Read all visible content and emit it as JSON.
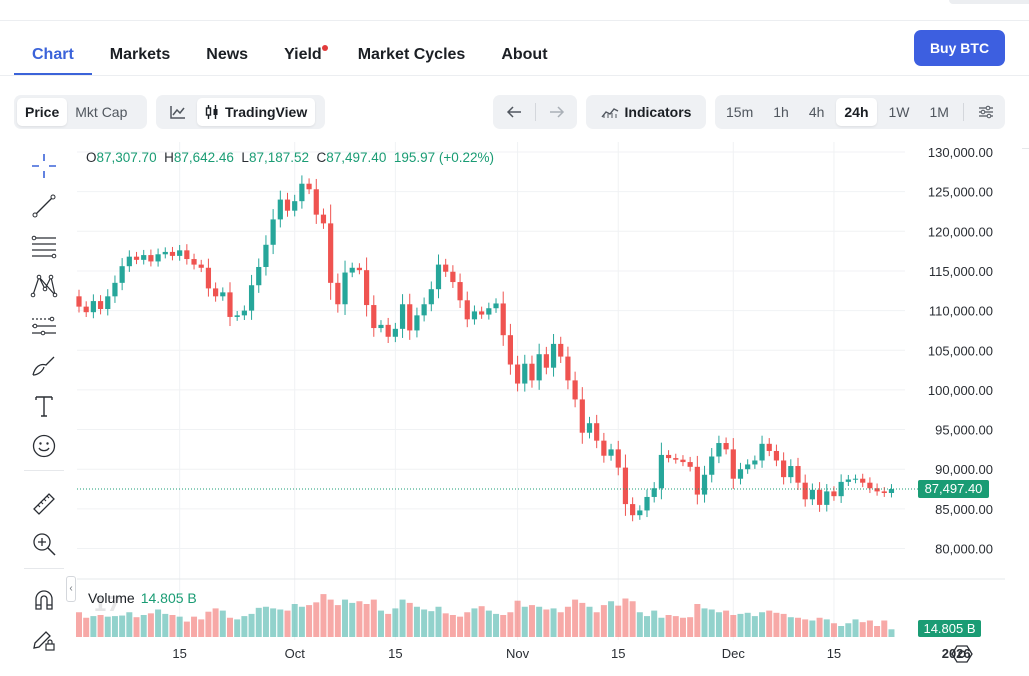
{
  "nav": {
    "tabs": [
      {
        "label": "Chart",
        "active": true
      },
      {
        "label": "Markets"
      },
      {
        "label": "News"
      },
      {
        "label": "Yield",
        "badge": true
      },
      {
        "label": "Market Cycles"
      },
      {
        "label": "About"
      }
    ],
    "buy_label": "Buy BTC"
  },
  "toolbar": {
    "price_label": "Price",
    "mktcap_label": "Mkt Cap",
    "tradingview_label": "TradingView",
    "indicators_label": "Indicators",
    "intervals": [
      "15m",
      "1h",
      "4h",
      "24h",
      "1W",
      "1M"
    ],
    "active_interval": "24h"
  },
  "ohlc": {
    "o_key": "O",
    "o": "87,307.70",
    "h_key": "H",
    "h": "87,642.46",
    "l_key": "L",
    "l": "87,187.52",
    "c_key": "C",
    "c": "87,497.40",
    "change": "195.97 (+0.22%)"
  },
  "volume_legend": {
    "label": "Volume",
    "value": "14.805 B"
  },
  "price_tag": "87,497.40",
  "volume_tag": "14.805 B",
  "colors": {
    "up": "#26a69a",
    "down": "#ef5350",
    "accent": "#3d5fe0",
    "price_tag": "#1a9c74"
  },
  "chart_data": {
    "type": "candlestick",
    "y_axis_ticks": [
      "130,000.00",
      "125,000.00",
      "120,000.00",
      "115,000.00",
      "110,000.00",
      "105,000.00",
      "100,000.00",
      "95,000.00",
      "90,000.00",
      "85,000.00",
      "80,000.00"
    ],
    "ylim": [
      77000,
      131000
    ],
    "x_axis_ticks": [
      {
        "label": "15",
        "day": 14
      },
      {
        "label": "Oct",
        "day": 30
      },
      {
        "label": "15",
        "day": 44
      },
      {
        "label": "Nov",
        "day": 61
      },
      {
        "label": "15",
        "day": 75
      },
      {
        "label": "Dec",
        "day": 91
      },
      {
        "label": "15",
        "day": 105
      },
      {
        "label": "2026",
        "day": 122
      }
    ],
    "grid": true,
    "last_price": 87497.4,
    "closes": [
      110500,
      109800,
      111200,
      110200,
      111800,
      113500,
      115600,
      116800,
      116400,
      117000,
      116200,
      117100,
      117400,
      116900,
      117600,
      116500,
      115800,
      115400,
      112800,
      111800,
      112300,
      109200,
      109400,
      110000,
      113200,
      115500,
      118300,
      121500,
      124000,
      122600,
      123800,
      126000,
      125300,
      122100,
      121000,
      113500,
      110800,
      114800,
      115400,
      115100,
      110700,
      107800,
      108200,
      106700,
      107700,
      110800,
      107500,
      109400,
      110800,
      112700,
      115800,
      114900,
      113600,
      111300,
      108900,
      109900,
      109500,
      110300,
      110900,
      106900,
      103200,
      100800,
      103300,
      101200,
      104500,
      102800,
      105800,
      104200,
      101200,
      98800,
      94600,
      95800,
      93600,
      91700,
      92500,
      90200,
      85600,
      84200,
      84800,
      86500,
      87600,
      91800,
      91400,
      91200,
      90900,
      90300,
      86800,
      89300,
      91600,
      93300,
      92500,
      88800,
      90000,
      90600,
      91100,
      93200,
      92300,
      91100,
      89000,
      90400,
      88300,
      86200,
      87400,
      85500,
      87200,
      86600,
      88400,
      88700,
      88800,
      88300,
      87600,
      87200,
      87000,
      87497
    ],
    "volumes": [
      0.45,
      0.35,
      0.38,
      0.4,
      0.37,
      0.38,
      0.39,
      0.45,
      0.36,
      0.4,
      0.43,
      0.5,
      0.42,
      0.4,
      0.37,
      0.28,
      0.37,
      0.32,
      0.46,
      0.52,
      0.48,
      0.35,
      0.32,
      0.38,
      0.42,
      0.53,
      0.55,
      0.52,
      0.5,
      0.48,
      0.6,
      0.55,
      0.58,
      0.63,
      0.78,
      0.68,
      0.58,
      0.68,
      0.62,
      0.65,
      0.6,
      0.68,
      0.48,
      0.42,
      0.52,
      0.68,
      0.62,
      0.55,
      0.5,
      0.47,
      0.55,
      0.43,
      0.4,
      0.37,
      0.45,
      0.52,
      0.56,
      0.48,
      0.42,
      0.4,
      0.45,
      0.66,
      0.55,
      0.58,
      0.55,
      0.5,
      0.52,
      0.45,
      0.55,
      0.68,
      0.62,
      0.55,
      0.45,
      0.58,
      0.65,
      0.57,
      0.7,
      0.65,
      0.45,
      0.38,
      0.48,
      0.35,
      0.4,
      0.38,
      0.35,
      0.36,
      0.6,
      0.52,
      0.5,
      0.45,
      0.48,
      0.4,
      0.42,
      0.44,
      0.38,
      0.45,
      0.48,
      0.44,
      0.42,
      0.36,
      0.35,
      0.32,
      0.3,
      0.35,
      0.32,
      0.25,
      0.2,
      0.25,
      0.32,
      0.27,
      0.3,
      0.2,
      0.3,
      0.14
    ],
    "volume_scale": "relative (0-1 of panel height)"
  }
}
